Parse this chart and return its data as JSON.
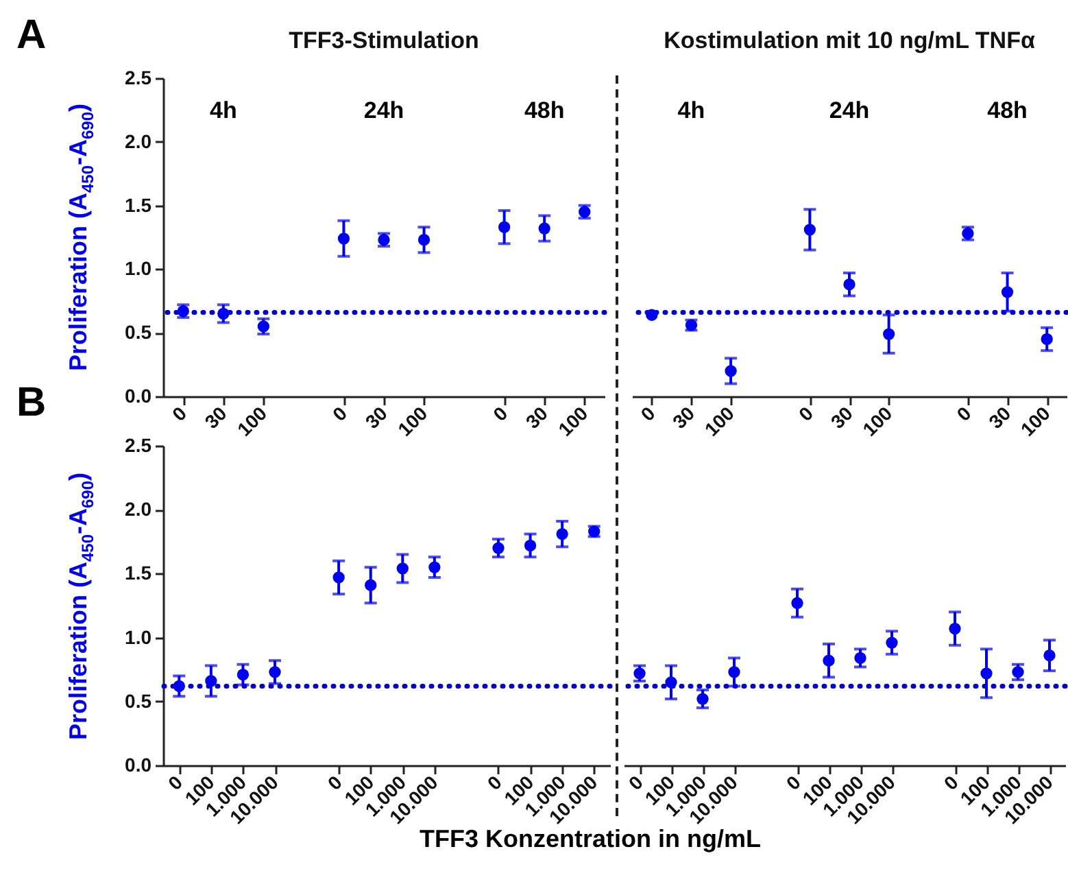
{
  "chart_data": [
    {
      "type": "scatter",
      "title": "TFF3-Stimulation",
      "ylabel": "Proliferation (A$_{450}$-A$_{690}$)",
      "categories": [
        "0",
        "30",
        "100",
        null,
        "0",
        "30",
        "100",
        null,
        "0",
        "30",
        "100"
      ],
      "color": "#0000f0",
      "marker": "circle",
      "values": [
        0.67,
        0.65,
        0.55,
        null,
        1.24,
        1.23,
        1.23,
        null,
        1.33,
        1.32,
        1.45
      ],
      "errors": [
        0.05,
        0.07,
        0.06,
        null,
        0.14,
        0.05,
        0.1,
        null,
        0.13,
        0.1,
        0.05
      ],
      "ylim": [
        0,
        2.5
      ],
      "yticks": [
        {
          "value": 0,
          "label": "0.0"
        },
        0.5,
        {
          "value": 1,
          "label": "1.0"
        },
        1.5,
        {
          "value": 2,
          "label": "2.0"
        },
        2.5
      ],
      "ref_lines": [
        {
          "axis": "y",
          "value": 0.66,
          "color": "#0000cc",
          "line_style": "dotted"
        }
      ],
      "annotations": [
        "A",
        "4h",
        "24h",
        "48h"
      ]
    },
    {
      "type": "scatter",
      "title": "Kostimulation mit 10 ng/mL TNFα",
      "categories": [
        "0",
        "30",
        "100",
        null,
        "0",
        "30",
        "100",
        null,
        "0",
        "30",
        "100"
      ],
      "color": "#0000f0",
      "marker": "circle",
      "values": [
        0.64,
        0.56,
        0.2,
        null,
        1.31,
        0.88,
        0.49,
        null,
        1.28,
        0.82,
        0.45
      ],
      "errors": [
        null,
        0.04,
        0.1,
        null,
        0.16,
        0.09,
        0.15,
        null,
        0.05,
        0.15,
        0.09
      ],
      "ylim": [
        0,
        2.5
      ],
      "tick_labels": "x",
      "ref_lines": [
        {
          "axis": "y",
          "value": 0.66,
          "color": "#0000cc",
          "line_style": "dotted"
        }
      ],
      "annotations": [
        "4h",
        "24h",
        "48h"
      ]
    },
    {
      "type": "scatter",
      "ylabel": "Proliferation (A$_{450}$-A$_{690}$)",
      "xlabel": "TFF3 Konzentration in ng/mL",
      "categories": [
        "0",
        "100",
        "1.000",
        "10.000",
        null,
        "0",
        "100",
        "1.000",
        "10.000",
        null,
        "0",
        "100",
        "1.000",
        "10.000"
      ],
      "color": "#0000f0",
      "marker": "circle",
      "values": [
        0.62,
        0.66,
        0.71,
        0.73,
        null,
        1.47,
        1.41,
        1.54,
        1.55,
        null,
        1.7,
        1.72,
        1.81,
        1.83
      ],
      "errors": [
        0.08,
        0.12,
        0.08,
        0.09,
        null,
        0.13,
        0.14,
        0.11,
        0.08,
        null,
        0.07,
        0.09,
        0.1,
        0.04
      ],
      "ylim": [
        0,
        2.5
      ],
      "yticks": [
        {
          "value": 0,
          "label": "0.0"
        },
        0.5,
        {
          "value": 1,
          "label": "1.0"
        },
        1.5,
        {
          "value": 2,
          "label": "2.0"
        },
        2.5
      ],
      "ref_lines": [
        {
          "axis": "y",
          "value": 0.62,
          "color": "#0000cc",
          "line_style": "dotted"
        }
      ],
      "annotations": [
        "B"
      ]
    },
    {
      "type": "scatter",
      "categories": [
        "0",
        "100",
        "1.000",
        "10.000",
        null,
        "0",
        "100",
        "1.000",
        "10.000",
        null,
        "0",
        "100",
        "1.000",
        "10.000"
      ],
      "color": "#0000f0",
      "marker": "circle",
      "values": [
        0.72,
        0.65,
        0.52,
        0.73,
        null,
        1.27,
        0.82,
        0.84,
        0.96,
        null,
        1.07,
        0.72,
        0.73,
        0.86
      ],
      "errors": [
        0.06,
        0.13,
        0.07,
        0.11,
        null,
        0.11,
        0.13,
        0.07,
        0.09,
        null,
        0.13,
        0.19,
        0.06,
        0.12
      ],
      "ylim": [
        0,
        2.5
      ],
      "tick_labels": "x",
      "ref_lines": [
        {
          "axis": "y",
          "value": 0.62,
          "color": "#0000cc",
          "line_style": "dotted"
        }
      ]
    }
  ]
}
